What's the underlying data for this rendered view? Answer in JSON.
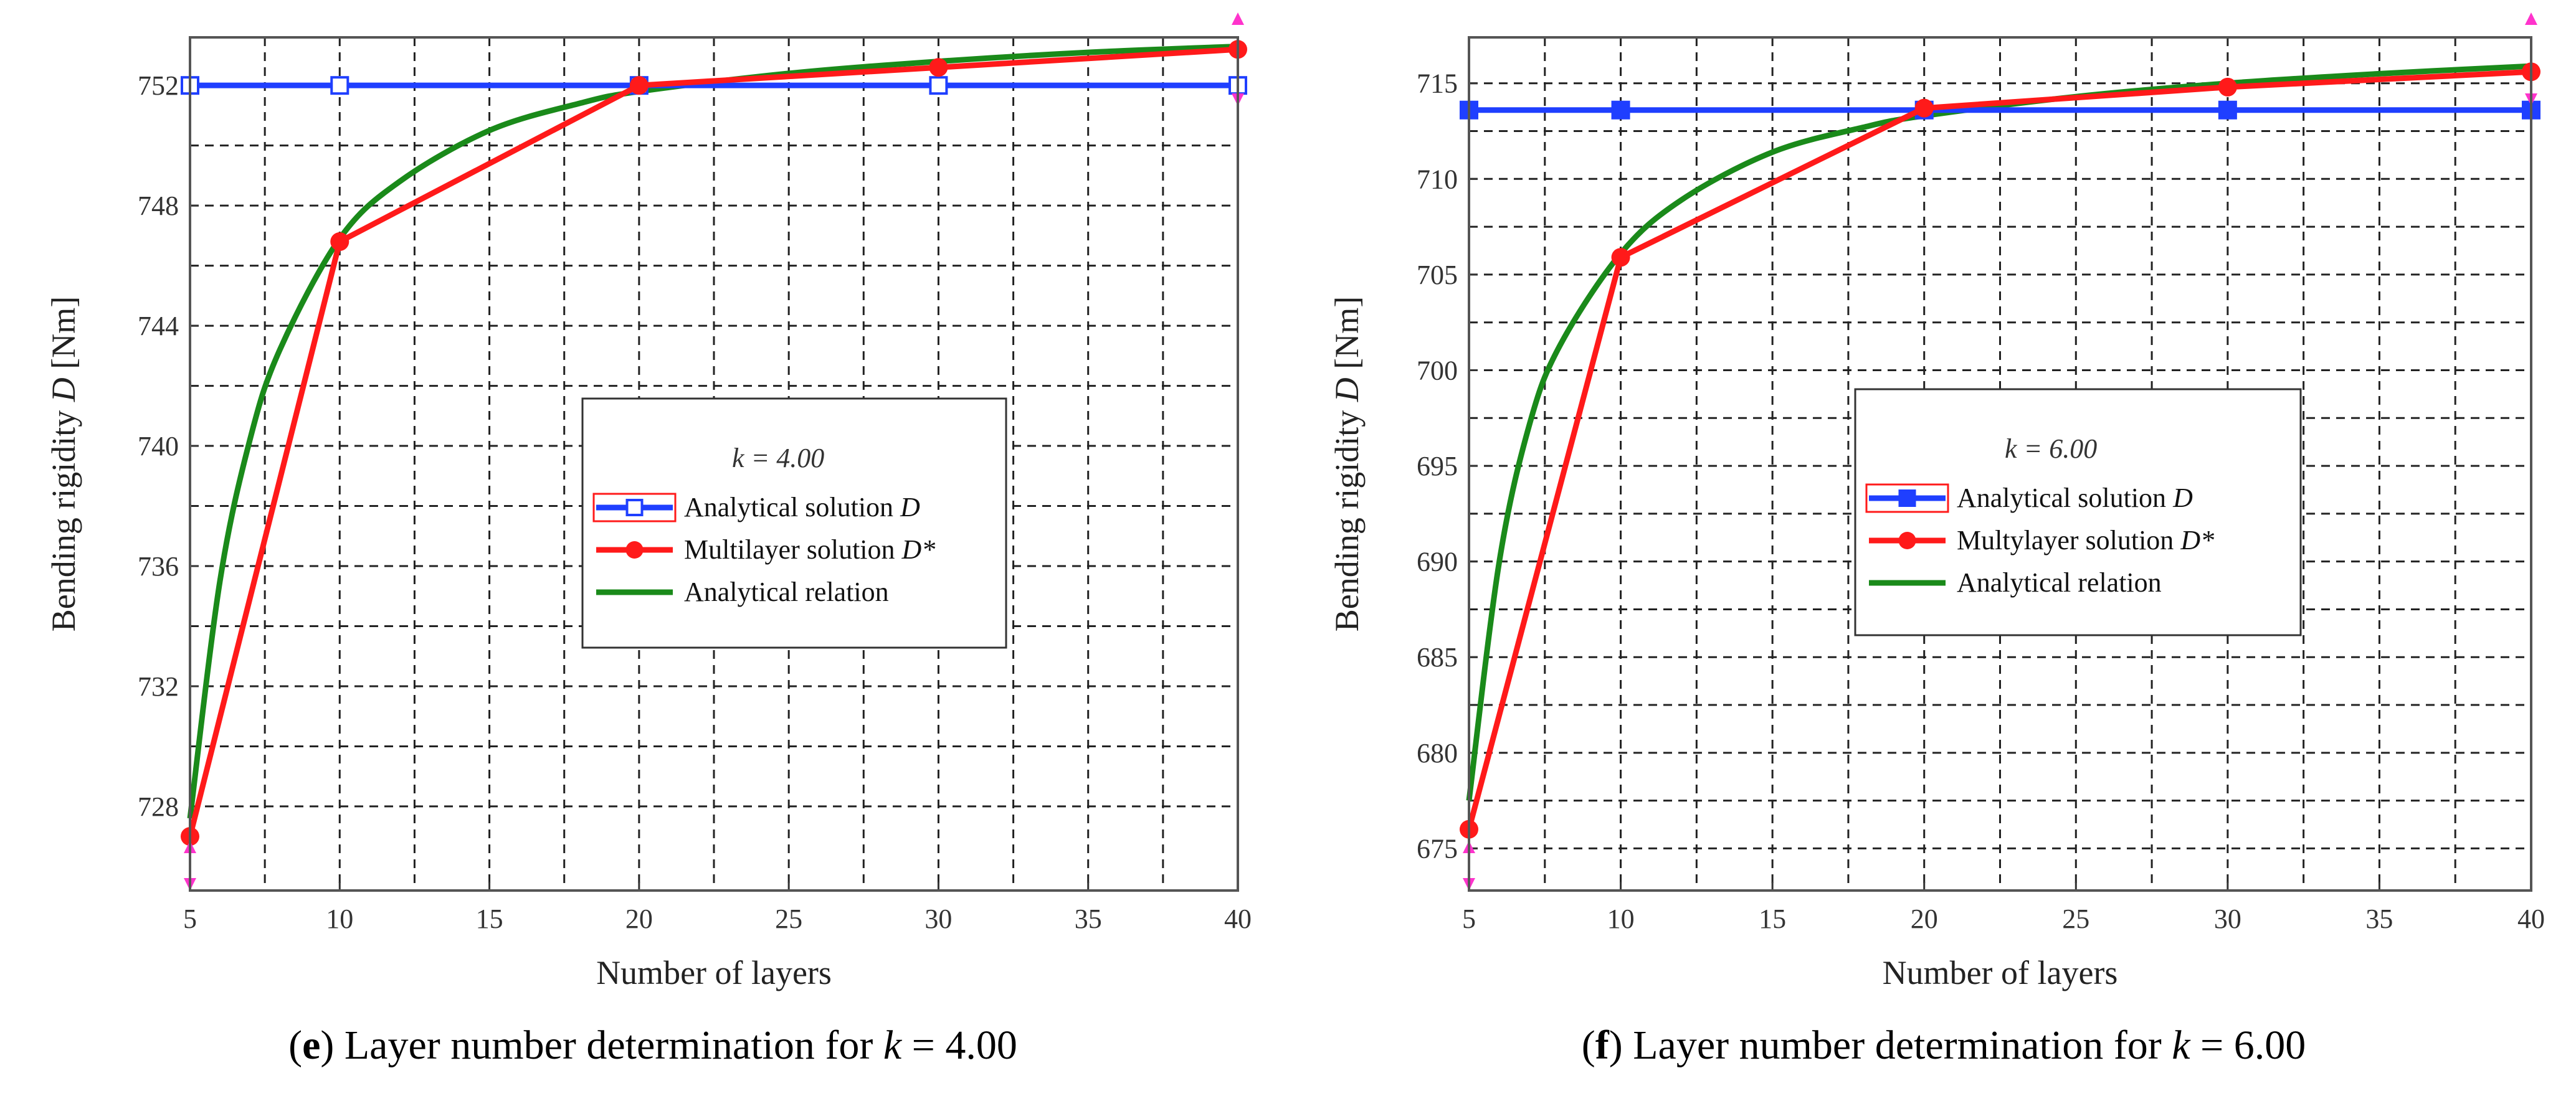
{
  "chart_data": [
    {
      "type": "line",
      "k_label": "k = 4.00",
      "caption_letter": "e",
      "caption_text": " Layer number determination for ",
      "caption_k": "k",
      "caption_value": " = 4.00",
      "xlabel": "Number of layers",
      "ylabel_main": "Bending rigidity ",
      "ylabel_sym": "D",
      "ylabel_unit": "  [Nm]",
      "xlim": [
        5,
        40
      ],
      "ylim": [
        725.2,
        753.6
      ],
      "xticks": [
        5,
        10,
        15,
        20,
        25,
        30,
        35,
        40
      ],
      "yticks": [
        728,
        732,
        736,
        740,
        744,
        748,
        752
      ],
      "grid": true,
      "legend": [
        {
          "label": "Analytical solution ",
          "sym": "D",
          "color": "#1f3fff",
          "marker": "open-square"
        },
        {
          "label": "Multilayer solution ",
          "sym": "D*",
          "color": "#ff1a1a",
          "marker": "circle"
        },
        {
          "label": "Analytical relation",
          "sym": "",
          "color": "#1a8a1a",
          "marker": "none"
        }
      ],
      "series": [
        {
          "name": "Analytical solution D",
          "color": "#1f3fff",
          "x": [
            5,
            10,
            20,
            30,
            40
          ],
          "y": [
            752.0,
            752.0,
            752.0,
            752.0,
            752.0
          ]
        },
        {
          "name": "Multilayer solution D*",
          "color": "#ff1a1a",
          "x": [
            5,
            10,
            20,
            30,
            40
          ],
          "y": [
            727.0,
            746.8,
            752.0,
            752.6,
            753.2
          ]
        },
        {
          "name": "Analytical relation",
          "color": "#1a8a1a",
          "x": [
            5,
            6,
            7,
            8,
            10,
            12,
            15,
            18,
            20,
            25,
            30,
            35,
            40
          ],
          "y": [
            727.6,
            735.5,
            740.2,
            743.2,
            746.9,
            748.8,
            750.5,
            751.4,
            751.8,
            752.4,
            752.8,
            753.1,
            753.3
          ]
        }
      ]
    },
    {
      "type": "line",
      "k_label": "k = 6.00",
      "caption_letter": "f",
      "caption_text": " Layer number determination for ",
      "caption_k": "k",
      "caption_value": " = 6.00",
      "xlabel": "Number of layers",
      "ylabel_main": "Bending rigidity ",
      "ylabel_sym": "D",
      "ylabel_unit": "  [Nm]",
      "xlim": [
        5,
        40
      ],
      "ylim": [
        672.8,
        717.4
      ],
      "xticks": [
        5,
        10,
        15,
        20,
        25,
        30,
        35,
        40
      ],
      "yticks": [
        675,
        680,
        685,
        690,
        695,
        700,
        705,
        710,
        715
      ],
      "grid": true,
      "legend": [
        {
          "label": "Analytical solution ",
          "sym": "D",
          "color": "#1f3fff",
          "marker": "filled-square"
        },
        {
          "label": "Multylayer solution ",
          "sym": "D*",
          "color": "#ff1a1a",
          "marker": "circle"
        },
        {
          "label": "Analytical relation",
          "sym": "",
          "color": "#1a8a1a",
          "marker": "none"
        }
      ],
      "series": [
        {
          "name": "Analytical solution D",
          "color": "#1f3fff",
          "x": [
            5,
            10,
            20,
            30,
            40
          ],
          "y": [
            713.6,
            713.6,
            713.6,
            713.6,
            713.6
          ]
        },
        {
          "name": "Multylayer solution D*",
          "color": "#ff1a1a",
          "x": [
            5,
            10,
            20,
            30,
            40
          ],
          "y": [
            676.0,
            705.9,
            713.7,
            714.8,
            715.6
          ]
        },
        {
          "name": "Analytical relation",
          "color": "#1a8a1a",
          "x": [
            5,
            6,
            7,
            8,
            10,
            12,
            15,
            18,
            20,
            25,
            30,
            35,
            40
          ],
          "y": [
            677.5,
            690.0,
            697.2,
            701.3,
            706.1,
            708.9,
            711.4,
            712.7,
            713.3,
            714.3,
            715.0,
            715.5,
            715.9
          ]
        }
      ]
    }
  ]
}
